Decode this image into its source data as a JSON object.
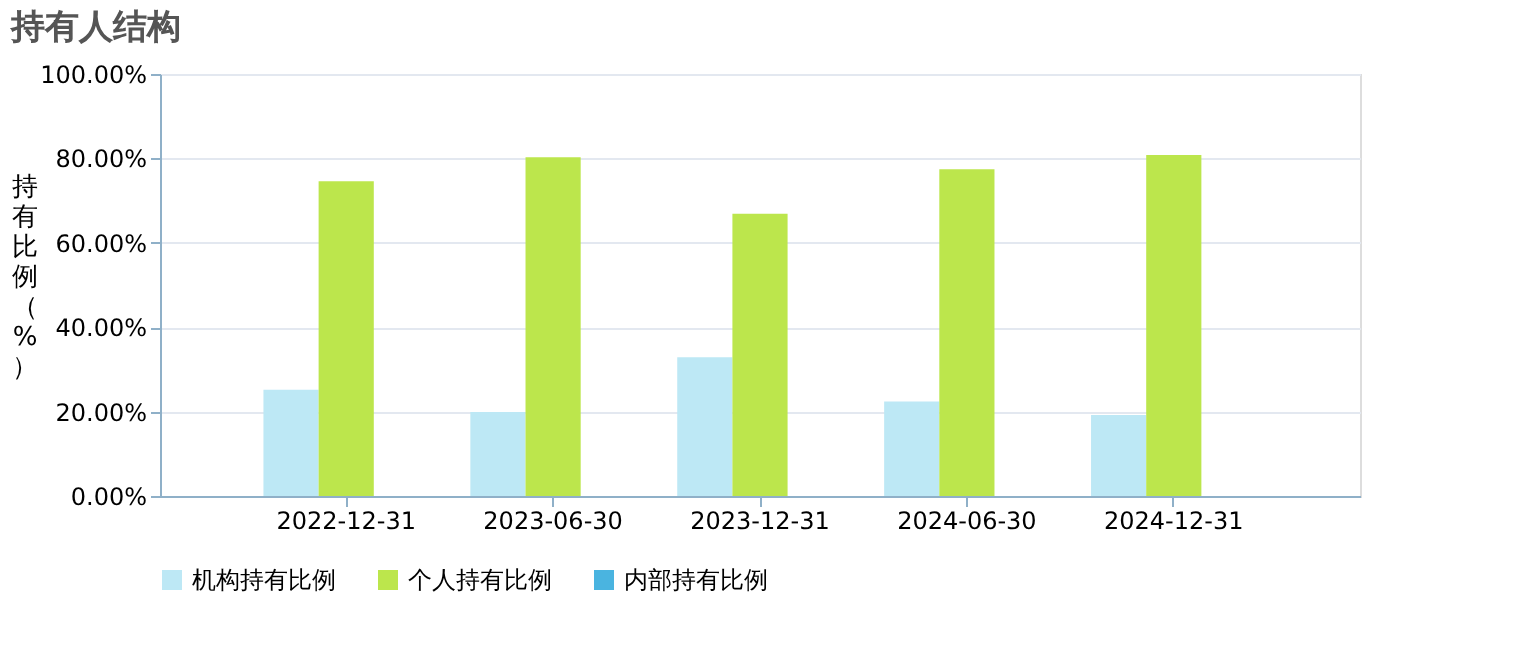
{
  "chart_data": {
    "type": "bar",
    "title": "持有人结构",
    "ylabel": "持有比例（%）",
    "categories": [
      "2022-12-31",
      "2023-06-30",
      "2023-12-31",
      "2024-06-30",
      "2024-12-31"
    ],
    "series": [
      {
        "name": "机构持有比例",
        "color": "#bde8f5",
        "values": [
          25.2,
          19.9,
          32.9,
          22.4,
          19.2
        ]
      },
      {
        "name": "个人持有比例",
        "color": "#bce64c",
        "values": [
          74.6,
          80.3,
          66.9,
          77.4,
          80.8
        ]
      },
      {
        "name": "内部持有比例",
        "color": "#4ab4e0",
        "values": [
          0,
          0,
          0,
          0,
          0
        ]
      }
    ],
    "ylim": [
      0,
      100
    ],
    "yticks": [
      {
        "value": 0,
        "label": "0.00%"
      },
      {
        "value": 20,
        "label": "20.00%"
      },
      {
        "value": 40,
        "label": "40.00%"
      },
      {
        "value": 60,
        "label": "60.00%"
      },
      {
        "value": 80,
        "label": "80.00%"
      },
      {
        "value": 100,
        "label": "100.00%"
      }
    ],
    "grid": "y",
    "legend": "bottom"
  }
}
